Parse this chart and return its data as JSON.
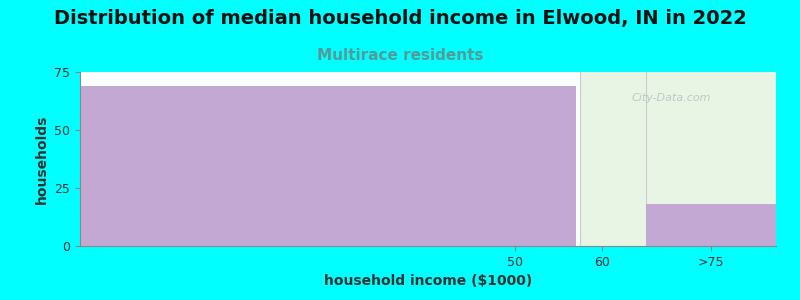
{
  "title": "Distribution of median household income in Elwood, IN in 2022",
  "subtitle": "Multirace residents",
  "xlabel": "household income ($1000)",
  "ylabel": "households",
  "background_color": "#00FFFF",
  "bar_color": "#C4A8D4",
  "bar_values": [
    69,
    0,
    18
  ],
  "ylim": [
    0,
    75
  ],
  "yticks": [
    0,
    25,
    50,
    75
  ],
  "xtick_labels": [
    "50",
    "60",
    ">75"
  ],
  "plot_bg_left": "#FAFFFE",
  "plot_bg_right": "#E8F5E4",
  "watermark": "City-Data.com",
  "title_fontsize": 14,
  "subtitle_fontsize": 11,
  "subtitle_color": "#559999",
  "axis_label_fontsize": 10,
  "tick_fontsize": 9
}
